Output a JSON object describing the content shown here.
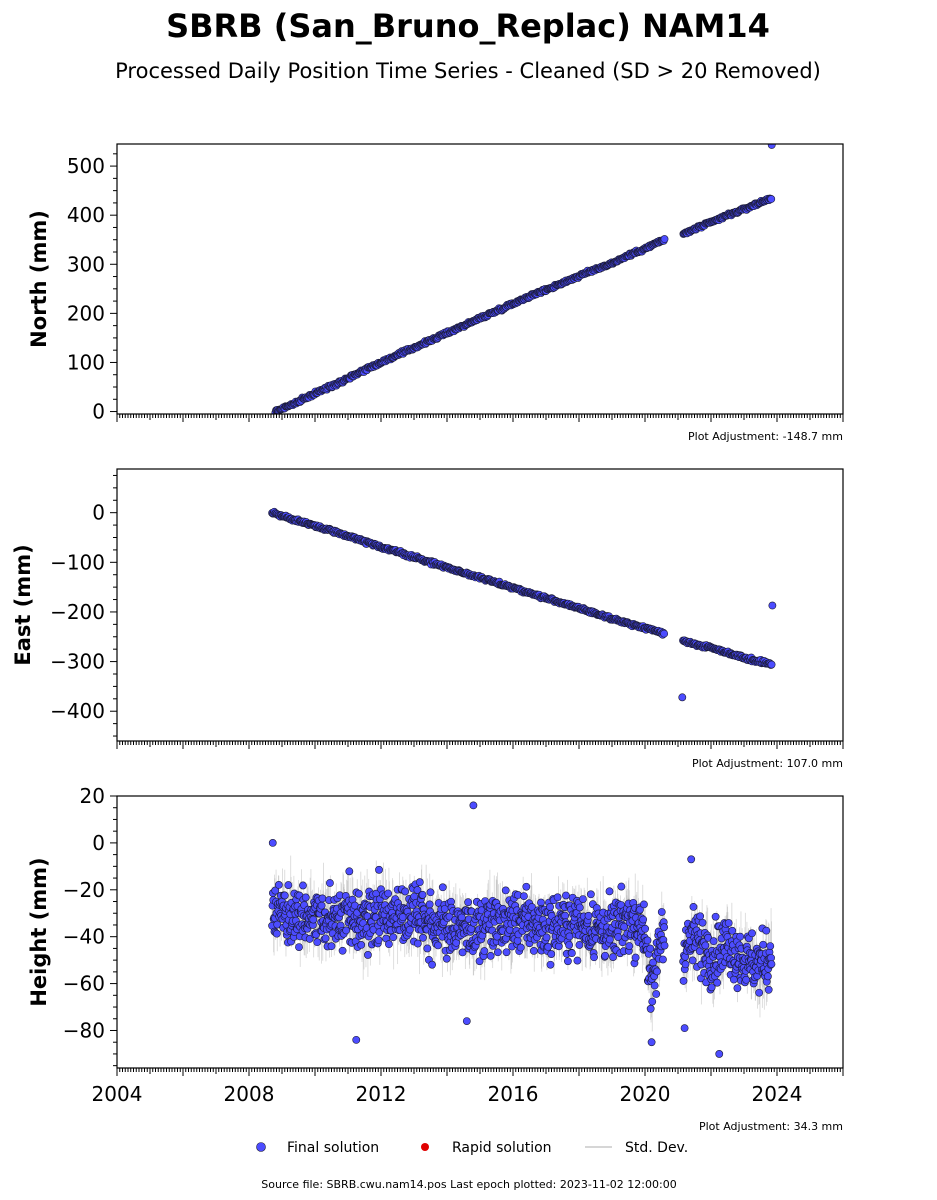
{
  "title": "SBRB (San_Bruno_Replac) NAM14",
  "subtitle": "Processed Daily Position Time Series - Cleaned (SD > 20 Removed)",
  "legend": [
    {
      "label": "Final solution",
      "kind": "marker",
      "color": "#4c4cff"
    },
    {
      "label": "Rapid solution",
      "kind": "marker",
      "color": "#e00000"
    },
    {
      "label": "Std. Dev.",
      "kind": "line",
      "color": "#c8c8c8"
    }
  ],
  "footer": "Source file: SBRB.cwu.nam14.pos  Last epoch plotted: 2023-11-02 12:00:00",
  "colors": {
    "marker_fill": "#4c4cff",
    "marker_edge": "#1a1a33",
    "errorbar": "#b4b4b4"
  },
  "chart_data": [
    {
      "type": "scatter",
      "ylabel": "North (mm)",
      "adjustment": "Plot Adjustment: -148.7 mm",
      "xlim": [
        2004.0,
        2026.0
      ],
      "ylim": [
        -5,
        545
      ],
      "yticks": [
        0,
        100,
        200,
        300,
        400,
        500
      ],
      "x_tick_labels_shown": false,
      "series": [
        {
          "x": [
            2008.8,
            2009.0,
            2009.5,
            2010.0,
            2010.5,
            2011.0,
            2011.5,
            2012.0,
            2012.5,
            2013.0,
            2013.5,
            2014.0,
            2014.5,
            2015.0,
            2015.5,
            2016.0,
            2016.5,
            2017.0,
            2017.5,
            2018.0,
            2018.5,
            2019.0,
            2019.5,
            2020.0,
            2020.5,
            2021.2,
            2021.5,
            2022.0,
            2022.5,
            2023.0,
            2023.5,
            2023.84
          ],
          "y": [
            0,
            6,
            20,
            37,
            52,
            68,
            85,
            100,
            115,
            130,
            145,
            160,
            175,
            190,
            205,
            220,
            235,
            248,
            262,
            276,
            290,
            302,
            318,
            332,
            348,
            362,
            372,
            385,
            400,
            412,
            426,
            435
          ]
        }
      ],
      "outliers": [
        {
          "x": 2023.84,
          "y": 543
        }
      ]
    },
    {
      "type": "scatter",
      "ylabel": "East (mm)",
      "adjustment": "Plot Adjustment: 107.0 mm",
      "xlim": [
        2004.0,
        2026.0
      ],
      "ylim": [
        -460,
        88
      ],
      "yticks": [
        -400,
        -300,
        -200,
        -100,
        0
      ],
      "x_tick_labels_shown": false,
      "series": [
        {
          "x": [
            2008.7,
            2009.0,
            2009.5,
            2010.0,
            2010.5,
            2011.0,
            2011.5,
            2012.0,
            2012.5,
            2013.0,
            2013.5,
            2014.0,
            2014.5,
            2015.0,
            2015.5,
            2016.0,
            2016.5,
            2017.0,
            2017.5,
            2018.0,
            2018.5,
            2019.0,
            2019.5,
            2020.0,
            2020.5,
            2021.2,
            2021.5,
            2022.0,
            2022.5,
            2023.0,
            2023.5,
            2023.84
          ],
          "y": [
            0,
            -7,
            -17,
            -27,
            -37,
            -47,
            -58,
            -69,
            -79,
            -90,
            -100,
            -110,
            -121,
            -131,
            -141,
            -151,
            -162,
            -172,
            -182,
            -193,
            -203,
            -213,
            -224,
            -232,
            -242,
            -258,
            -265,
            -272,
            -282,
            -292,
            -300,
            -306
          ]
        }
      ],
      "outliers": [
        {
          "x": 2021.13,
          "y": -372
        },
        {
          "x": 2023.86,
          "y": -187
        }
      ]
    },
    {
      "type": "scatter",
      "ylabel": "Height (mm)",
      "adjustment": "Plot Adjustment: 34.3 mm",
      "xlim": [
        2004.0,
        2026.0
      ],
      "ylim": [
        -96,
        20
      ],
      "yticks": [
        -80,
        -60,
        -40,
        -20,
        0,
        20
      ],
      "xticks": [
        2004,
        2008,
        2012,
        2016,
        2020,
        2024
      ],
      "x_tick_labels": [
        "2004",
        "2008",
        "2012",
        "2016",
        "2020",
        "2024"
      ],
      "series": [
        {
          "x": [
            2008.7,
            2009.0,
            2009.5,
            2010.0,
            2010.5,
            2011.0,
            2011.5,
            2012.0,
            2012.5,
            2013.0,
            2013.5,
            2014.0,
            2014.5,
            2015.0,
            2015.5,
            2016.0,
            2016.5,
            2017.0,
            2017.5,
            2018.0,
            2018.5,
            2019.0,
            2019.5,
            2020.0,
            2020.2,
            2020.5,
            2021.2,
            2021.5,
            2022.0,
            2022.5,
            2023.0,
            2023.5,
            2023.84
          ],
          "y": [
            -25,
            -30,
            -30,
            -32,
            -33,
            -28,
            -35,
            -30,
            -32,
            -30,
            -33,
            -35,
            -36,
            -38,
            -35,
            -33,
            -34,
            -36,
            -35,
            -34,
            -36,
            -38,
            -33,
            -36,
            -65,
            -38,
            -45,
            -40,
            -48,
            -43,
            -50,
            -52,
            -48
          ]
        }
      ],
      "outliers": [
        {
          "x": 2014.8,
          "y": 16
        },
        {
          "x": 2008.72,
          "y": 0
        },
        {
          "x": 2011.25,
          "y": -84
        },
        {
          "x": 2014.6,
          "y": -76
        },
        {
          "x": 2021.4,
          "y": -7
        },
        {
          "x": 2022.25,
          "y": -90
        },
        {
          "x": 2021.2,
          "y": -79
        },
        {
          "x": 2020.2,
          "y": -85
        }
      ]
    }
  ]
}
